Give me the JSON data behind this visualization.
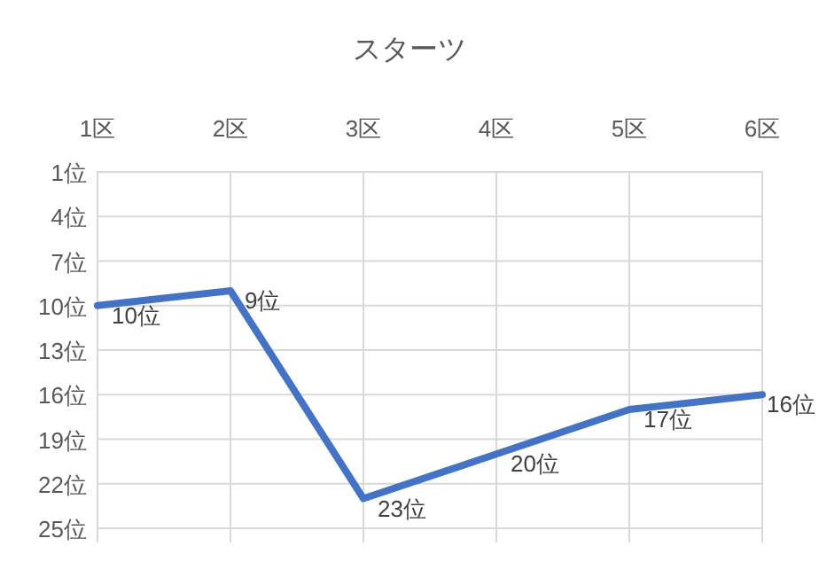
{
  "chart_data": {
    "type": "line",
    "title": "スターツ",
    "categories": [
      "1区",
      "2区",
      "3区",
      "4区",
      "5区",
      "6区"
    ],
    "series": [
      {
        "color": "#4472c4",
        "values": [
          10,
          9,
          23,
          20,
          17,
          16
        ],
        "value_labels": [
          "10位",
          "9位",
          "23位",
          "20位",
          "17位",
          "16位"
        ]
      }
    ],
    "ylim": [
      25,
      1
    ],
    "yticks": [
      {
        "value": 1,
        "label": "1位"
      },
      {
        "value": 4,
        "label": "4位"
      },
      {
        "value": 7,
        "label": "7位"
      },
      {
        "value": 10,
        "label": "10位"
      },
      {
        "value": 13,
        "label": "13位"
      },
      {
        "value": 16,
        "label": "16位"
      },
      {
        "value": 19,
        "label": "19位"
      },
      {
        "value": 22,
        "label": "22位"
      },
      {
        "value": 25,
        "label": "25位"
      }
    ],
    "grid": true,
    "marker": "none",
    "line_style": "solid"
  }
}
